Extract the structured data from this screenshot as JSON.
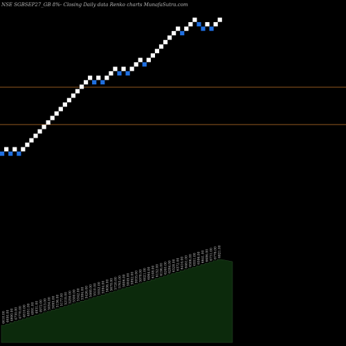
{
  "title": "NSE SGBSEP27_GB 8%- Closing Daily data Renko charts MunafaSutra.com",
  "chart_data": {
    "type": "renko",
    "title": "NSE SGBSEP27_GB 8%- Closing Daily data Renko charts MunafaSutra.com",
    "reference_lines": [
      "upper",
      "lower"
    ],
    "bricks": [
      {
        "dir": "down"
      },
      {
        "dir": "up"
      },
      {
        "dir": "down"
      },
      {
        "dir": "up"
      },
      {
        "dir": "down"
      },
      {
        "dir": "up"
      },
      {
        "dir": "up"
      },
      {
        "dir": "up"
      },
      {
        "dir": "up"
      },
      {
        "dir": "up"
      },
      {
        "dir": "up"
      },
      {
        "dir": "up"
      },
      {
        "dir": "up"
      },
      {
        "dir": "up"
      },
      {
        "dir": "up"
      },
      {
        "dir": "up"
      },
      {
        "dir": "up"
      },
      {
        "dir": "up"
      },
      {
        "dir": "up"
      },
      {
        "dir": "up"
      },
      {
        "dir": "up"
      },
      {
        "dir": "up"
      },
      {
        "dir": "down"
      },
      {
        "dir": "up"
      },
      {
        "dir": "down"
      },
      {
        "dir": "up"
      },
      {
        "dir": "up"
      },
      {
        "dir": "up"
      },
      {
        "dir": "down"
      },
      {
        "dir": "up"
      },
      {
        "dir": "down"
      },
      {
        "dir": "up"
      },
      {
        "dir": "up"
      },
      {
        "dir": "up"
      },
      {
        "dir": "down"
      },
      {
        "dir": "up"
      },
      {
        "dir": "up"
      },
      {
        "dir": "up"
      },
      {
        "dir": "up"
      },
      {
        "dir": "up"
      },
      {
        "dir": "up"
      },
      {
        "dir": "up"
      },
      {
        "dir": "up"
      },
      {
        "dir": "down"
      },
      {
        "dir": "up"
      },
      {
        "dir": "up"
      },
      {
        "dir": "up"
      },
      {
        "dir": "down"
      },
      {
        "dir": "down"
      },
      {
        "dir": "up"
      },
      {
        "dir": "down"
      },
      {
        "dir": "up"
      },
      {
        "dir": "up"
      }
    ],
    "price_labels": [
      "4610.00",
      "4650.00",
      "4690.00",
      "4730.00",
      "4770.00",
      "4810.00",
      "4851.00",
      "4891.00",
      "4931.00",
      "4972.00",
      "5013.00",
      "5054.00",
      "5095.00",
      "5136.00",
      "5177.00",
      "5218.00",
      "5259.00",
      "5300.00",
      "5342.00",
      "5384.00",
      "5426.00",
      "5468.00",
      "5510.00",
      "5552.00",
      "5594.00",
      "5636.00",
      "5678.00",
      "5720.00",
      "5763.00",
      "5806.00",
      "5849.00",
      "5892.00",
      "5935.00",
      "5978.00",
      "6021.00",
      "6064.00",
      "6108.00",
      "6152.00",
      "6196.00",
      "6240.00",
      "6284.00",
      "6328.00",
      "6372.00",
      "6416.00",
      "6461.00",
      "6506.00",
      "6551.00",
      "6596.00",
      "6641.00",
      "6686.00",
      "6731.00",
      "6776.00",
      "6821.00"
    ]
  }
}
